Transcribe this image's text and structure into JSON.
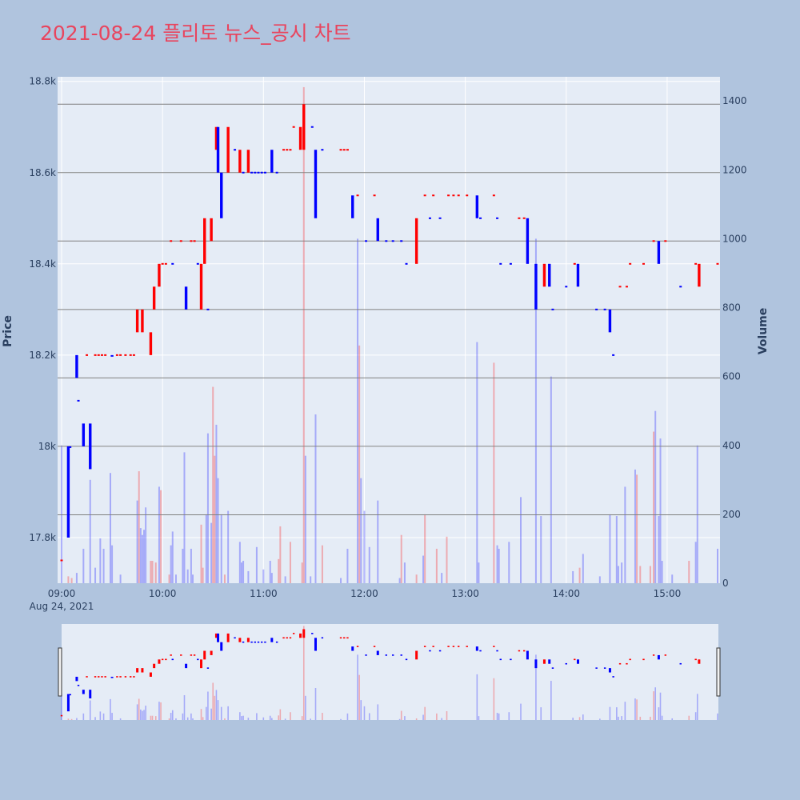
{
  "title": "2021-08-24 플리토 뉴스_공시 차트",
  "colors": {
    "background": "#b0c4de",
    "plot_bg": "#e5ecf6",
    "up": "#ff0000",
    "down": "#0000ff",
    "title": "#e8455e",
    "text": "#2a3f5f",
    "hline": "#808080"
  },
  "chart_data": {
    "type": "candlestick",
    "title": "2021-08-24 플리토 뉴스_공시 차트",
    "date_label": "Aug 24, 2021",
    "y_label": "Price",
    "y2_label": "Volume",
    "x_ticks": [
      "09:00",
      "10:00",
      "11:00",
      "12:00",
      "13:00",
      "14:00",
      "15:00"
    ],
    "y_ticks": [
      {
        "v": 17800,
        "label": "17.8k"
      },
      {
        "v": 18000,
        "label": "18k"
      },
      {
        "v": 18200,
        "label": "18.2k"
      },
      {
        "v": 18400,
        "label": "18.4k"
      },
      {
        "v": 18600,
        "label": "18.6k"
      },
      {
        "v": 18800,
        "label": "18.8k"
      }
    ],
    "y2_ticks": [
      0,
      200,
      400,
      600,
      800,
      1000,
      1200,
      1400
    ],
    "x_range": [
      "09:00",
      "15:30"
    ],
    "y_range": [
      17700,
      18810
    ],
    "y2_range": [
      0,
      1470
    ],
    "horizontal_lines": [
      17850,
      18000,
      18150,
      18300,
      18450,
      18600,
      18750
    ],
    "rangeslider": true,
    "candles": [
      {
        "t": "09:04",
        "o": 18000,
        "c": 17800
      },
      {
        "t": "09:05",
        "o": 18000,
        "c": 18000
      },
      {
        "t": "09:09",
        "o": 18200,
        "c": 18150
      },
      {
        "t": "09:13",
        "o": 18050,
        "c": 18000
      },
      {
        "t": "09:17",
        "o": 18050,
        "c": 17950
      },
      {
        "t": "09:30",
        "o": 18200,
        "c": 18200
      },
      {
        "t": "09:45",
        "o": 18250,
        "c": 18300
      },
      {
        "t": "09:48",
        "o": 18250,
        "c": 18300
      },
      {
        "t": "09:53",
        "o": 18200,
        "c": 18250
      },
      {
        "t": "09:55",
        "o": 18300,
        "c": 18350
      },
      {
        "t": "09:58",
        "o": 18350,
        "c": 18400
      },
      {
        "t": "10:14",
        "o": 18350,
        "c": 18300
      },
      {
        "t": "10:23",
        "o": 18300,
        "c": 18400
      },
      {
        "t": "10:25",
        "o": 18400,
        "c": 18500
      },
      {
        "t": "10:29",
        "o": 18450,
        "c": 18500
      },
      {
        "t": "10:32",
        "o": 18650,
        "c": 18700
      },
      {
        "t": "10:33",
        "o": 18700,
        "c": 18600
      },
      {
        "t": "10:35",
        "o": 18600,
        "c": 18500
      },
      {
        "t": "10:39",
        "o": 18600,
        "c": 18700
      },
      {
        "t": "10:46",
        "o": 18600,
        "c": 18650
      },
      {
        "t": "10:51",
        "o": 18600,
        "c": 18650
      },
      {
        "t": "11:05",
        "o": 18650,
        "c": 18600
      },
      {
        "t": "11:22",
        "o": 18650,
        "c": 18700
      },
      {
        "t": "11:24",
        "o": 18650,
        "c": 18750
      },
      {
        "t": "11:31",
        "o": 18650,
        "c": 18500
      },
      {
        "t": "11:53",
        "o": 18550,
        "c": 18500
      },
      {
        "t": "12:08",
        "o": 18500,
        "c": 18450
      },
      {
        "t": "12:31",
        "o": 18400,
        "c": 18500
      },
      {
        "t": "13:07",
        "o": 18550,
        "c": 18500
      },
      {
        "t": "13:37",
        "o": 18500,
        "c": 18400
      },
      {
        "t": "13:42",
        "o": 18400,
        "c": 18300
      },
      {
        "t": "13:47",
        "o": 18350,
        "c": 18400
      },
      {
        "t": "13:50",
        "o": 18400,
        "c": 18350
      },
      {
        "t": "14:07",
        "o": 18400,
        "c": 18350
      },
      {
        "t": "14:26",
        "o": 18300,
        "c": 18250
      },
      {
        "t": "14:55",
        "o": 18450,
        "c": 18400
      },
      {
        "t": "15:19",
        "o": 18350,
        "c": 18400
      }
    ],
    "flat_trades": [
      {
        "t": "09:00",
        "p": 17750,
        "d": "up"
      },
      {
        "t": "09:10",
        "p": 18100,
        "d": "down"
      },
      {
        "t": "09:15",
        "p": 18200,
        "d": "up"
      },
      {
        "t": "09:20",
        "p": 18200,
        "d": "up"
      },
      {
        "t": "09:22",
        "p": 18200,
        "d": "up"
      },
      {
        "t": "09:24",
        "p": 18200,
        "d": "up"
      },
      {
        "t": "09:26",
        "p": 18200,
        "d": "up"
      },
      {
        "t": "09:33",
        "p": 18200,
        "d": "up"
      },
      {
        "t": "09:35",
        "p": 18200,
        "d": "up"
      },
      {
        "t": "09:38",
        "p": 18200,
        "d": "up"
      },
      {
        "t": "09:41",
        "p": 18200,
        "d": "up"
      },
      {
        "t": "09:43",
        "p": 18200,
        "d": "up"
      },
      {
        "t": "10:00",
        "p": 18400,
        "d": "up"
      },
      {
        "t": "10:02",
        "p": 18400,
        "d": "up"
      },
      {
        "t": "10:05",
        "p": 18450,
        "d": "up"
      },
      {
        "t": "10:06",
        "p": 18400,
        "d": "down"
      },
      {
        "t": "10:11",
        "p": 18450,
        "d": "up"
      },
      {
        "t": "10:17",
        "p": 18450,
        "d": "up"
      },
      {
        "t": "10:19",
        "p": 18450,
        "d": "up"
      },
      {
        "t": "10:21",
        "p": 18400,
        "d": "down"
      },
      {
        "t": "10:27",
        "p": 18300,
        "d": "down"
      },
      {
        "t": "10:43",
        "p": 18650,
        "d": "down"
      },
      {
        "t": "10:48",
        "p": 18600,
        "d": "down"
      },
      {
        "t": "10:53",
        "p": 18600,
        "d": "down"
      },
      {
        "t": "10:55",
        "p": 18600,
        "d": "down"
      },
      {
        "t": "10:57",
        "p": 18600,
        "d": "down"
      },
      {
        "t": "10:59",
        "p": 18600,
        "d": "down"
      },
      {
        "t": "11:01",
        "p": 18600,
        "d": "down"
      },
      {
        "t": "11:08",
        "p": 18600,
        "d": "down"
      },
      {
        "t": "11:12",
        "p": 18650,
        "d": "up"
      },
      {
        "t": "11:14",
        "p": 18650,
        "d": "up"
      },
      {
        "t": "11:16",
        "p": 18650,
        "d": "up"
      },
      {
        "t": "11:18",
        "p": 18700,
        "d": "up"
      },
      {
        "t": "11:29",
        "p": 18700,
        "d": "down"
      },
      {
        "t": "11:35",
        "p": 18650,
        "d": "down"
      },
      {
        "t": "11:46",
        "p": 18650,
        "d": "up"
      },
      {
        "t": "11:48",
        "p": 18650,
        "d": "up"
      },
      {
        "t": "11:50",
        "p": 18650,
        "d": "up"
      },
      {
        "t": "11:56",
        "p": 18550,
        "d": "up"
      },
      {
        "t": "12:01",
        "p": 18450,
        "d": "down"
      },
      {
        "t": "12:06",
        "p": 18550,
        "d": "up"
      },
      {
        "t": "12:13",
        "p": 18450,
        "d": "down"
      },
      {
        "t": "12:17",
        "p": 18450,
        "d": "down"
      },
      {
        "t": "12:22",
        "p": 18450,
        "d": "down"
      },
      {
        "t": "12:25",
        "p": 18400,
        "d": "down"
      },
      {
        "t": "12:36",
        "p": 18550,
        "d": "up"
      },
      {
        "t": "12:39",
        "p": 18500,
        "d": "down"
      },
      {
        "t": "12:41",
        "p": 18550,
        "d": "up"
      },
      {
        "t": "12:45",
        "p": 18500,
        "d": "down"
      },
      {
        "t": "12:50",
        "p": 18550,
        "d": "up"
      },
      {
        "t": "12:53",
        "p": 18550,
        "d": "up"
      },
      {
        "t": "12:56",
        "p": 18550,
        "d": "up"
      },
      {
        "t": "13:01",
        "p": 18550,
        "d": "up"
      },
      {
        "t": "13:09",
        "p": 18500,
        "d": "down"
      },
      {
        "t": "13:17",
        "p": 18550,
        "d": "up"
      },
      {
        "t": "13:19",
        "p": 18500,
        "d": "down"
      },
      {
        "t": "13:21",
        "p": 18400,
        "d": "down"
      },
      {
        "t": "13:27",
        "p": 18400,
        "d": "down"
      },
      {
        "t": "13:32",
        "p": 18500,
        "d": "up"
      },
      {
        "t": "13:35",
        "p": 18500,
        "d": "up"
      },
      {
        "t": "13:52",
        "p": 18300,
        "d": "down"
      },
      {
        "t": "14:00",
        "p": 18350,
        "d": "down"
      },
      {
        "t": "14:05",
        "p": 18400,
        "d": "up"
      },
      {
        "t": "14:18",
        "p": 18300,
        "d": "down"
      },
      {
        "t": "14:23",
        "p": 18300,
        "d": "down"
      },
      {
        "t": "14:28",
        "p": 18200,
        "d": "down"
      },
      {
        "t": "14:32",
        "p": 18350,
        "d": "up"
      },
      {
        "t": "14:36",
        "p": 18350,
        "d": "up"
      },
      {
        "t": "14:38",
        "p": 18400,
        "d": "up"
      },
      {
        "t": "14:46",
        "p": 18400,
        "d": "up"
      },
      {
        "t": "14:52",
        "p": 18450,
        "d": "up"
      },
      {
        "t": "14:59",
        "p": 18450,
        "d": "up"
      },
      {
        "t": "15:08",
        "p": 18350,
        "d": "down"
      },
      {
        "t": "15:17",
        "p": 18400,
        "d": "up"
      },
      {
        "t": "15:30",
        "p": 18400,
        "d": "up"
      }
    ],
    "volume": [
      {
        "t": "09:00",
        "v": 400,
        "d": "down"
      },
      {
        "t": "09:04",
        "v": 20,
        "d": "up"
      },
      {
        "t": "09:06",
        "v": 15,
        "d": "up"
      },
      {
        "t": "09:09",
        "v": 30,
        "d": "down"
      },
      {
        "t": "09:13",
        "v": 100,
        "d": "down"
      },
      {
        "t": "09:17",
        "v": 300,
        "d": "down"
      },
      {
        "t": "09:20",
        "v": 45,
        "d": "down"
      },
      {
        "t": "09:23",
        "v": 130,
        "d": "down"
      },
      {
        "t": "09:25",
        "v": 100,
        "d": "down"
      },
      {
        "t": "09:29",
        "v": 320,
        "d": "down"
      },
      {
        "t": "09:30",
        "v": 110,
        "d": "down"
      },
      {
        "t": "09:35",
        "v": 25,
        "d": "down"
      },
      {
        "t": "09:45",
        "v": 240,
        "d": "down"
      },
      {
        "t": "09:46",
        "v": 325,
        "d": "up"
      },
      {
        "t": "09:47",
        "v": 160,
        "d": "down"
      },
      {
        "t": "09:48",
        "v": 140,
        "d": "down"
      },
      {
        "t": "09:49",
        "v": 155,
        "d": "down"
      },
      {
        "t": "09:50",
        "v": 220,
        "d": "down"
      },
      {
        "t": "09:53",
        "v": 65,
        "d": "up"
      },
      {
        "t": "09:54",
        "v": 65,
        "d": "up"
      },
      {
        "t": "09:56",
        "v": 60,
        "d": "up"
      },
      {
        "t": "09:58",
        "v": 280,
        "d": "down"
      },
      {
        "t": "09:59",
        "v": 270,
        "d": "up"
      },
      {
        "t": "10:04",
        "v": 25,
        "d": "up"
      },
      {
        "t": "10:05",
        "v": 110,
        "d": "down"
      },
      {
        "t": "10:06",
        "v": 150,
        "d": "down"
      },
      {
        "t": "10:08",
        "v": 25,
        "d": "down"
      },
      {
        "t": "10:12",
        "v": 100,
        "d": "down"
      },
      {
        "t": "10:13",
        "v": 380,
        "d": "down"
      },
      {
        "t": "10:15",
        "v": 40,
        "d": "down"
      },
      {
        "t": "10:17",
        "v": 100,
        "d": "down"
      },
      {
        "t": "10:18",
        "v": 25,
        "d": "down"
      },
      {
        "t": "10:23",
        "v": 170,
        "d": "up"
      },
      {
        "t": "10:24",
        "v": 45,
        "d": "up"
      },
      {
        "t": "10:26",
        "v": 200,
        "d": "down"
      },
      {
        "t": "10:27",
        "v": 435,
        "d": "down"
      },
      {
        "t": "10:29",
        "v": 175,
        "d": "down"
      },
      {
        "t": "10:30",
        "v": 570,
        "d": "up"
      },
      {
        "t": "10:31",
        "v": 370,
        "d": "up"
      },
      {
        "t": "10:32",
        "v": 460,
        "d": "down"
      },
      {
        "t": "10:33",
        "v": 305,
        "d": "down"
      },
      {
        "t": "10:35",
        "v": 200,
        "d": "down"
      },
      {
        "t": "10:37",
        "v": 25,
        "d": "up"
      },
      {
        "t": "10:39",
        "v": 210,
        "d": "down"
      },
      {
        "t": "10:46",
        "v": 120,
        "d": "down"
      },
      {
        "t": "10:47",
        "v": 60,
        "d": "down"
      },
      {
        "t": "10:48",
        "v": 65,
        "d": "down"
      },
      {
        "t": "10:51",
        "v": 35,
        "d": "down"
      },
      {
        "t": "10:56",
        "v": 105,
        "d": "down"
      },
      {
        "t": "11:00",
        "v": 40,
        "d": "down"
      },
      {
        "t": "11:04",
        "v": 65,
        "d": "down"
      },
      {
        "t": "11:05",
        "v": 30,
        "d": "down"
      },
      {
        "t": "11:09",
        "v": 70,
        "d": "up"
      },
      {
        "t": "11:10",
        "v": 165,
        "d": "up"
      },
      {
        "t": "11:13",
        "v": 20,
        "d": "down"
      },
      {
        "t": "11:16",
        "v": 120,
        "d": "up"
      },
      {
        "t": "11:23",
        "v": 60,
        "d": "up"
      },
      {
        "t": "11:24",
        "v": 1440,
        "d": "up"
      },
      {
        "t": "11:25",
        "v": 370,
        "d": "down"
      },
      {
        "t": "11:28",
        "v": 20,
        "d": "down"
      },
      {
        "t": "11:31",
        "v": 490,
        "d": "down"
      },
      {
        "t": "11:35",
        "v": 110,
        "d": "up"
      },
      {
        "t": "11:46",
        "v": 15,
        "d": "down"
      },
      {
        "t": "11:50",
        "v": 100,
        "d": "down"
      },
      {
        "t": "11:56",
        "v": 1000,
        "d": "down"
      },
      {
        "t": "11:57",
        "v": 690,
        "d": "up"
      },
      {
        "t": "11:58",
        "v": 305,
        "d": "down"
      },
      {
        "t": "12:00",
        "v": 210,
        "d": "down"
      },
      {
        "t": "12:03",
        "v": 105,
        "d": "down"
      },
      {
        "t": "12:08",
        "v": 240,
        "d": "down"
      },
      {
        "t": "12:21",
        "v": 15,
        "d": "down"
      },
      {
        "t": "12:22",
        "v": 140,
        "d": "up"
      },
      {
        "t": "12:24",
        "v": 60,
        "d": "down"
      },
      {
        "t": "12:31",
        "v": 25,
        "d": "up"
      },
      {
        "t": "12:35",
        "v": 80,
        "d": "down"
      },
      {
        "t": "12:36",
        "v": 200,
        "d": "up"
      },
      {
        "t": "12:43",
        "v": 100,
        "d": "up"
      },
      {
        "t": "12:46",
        "v": 30,
        "d": "down"
      },
      {
        "t": "12:49",
        "v": 135,
        "d": "up"
      },
      {
        "t": "13:07",
        "v": 700,
        "d": "down"
      },
      {
        "t": "13:08",
        "v": 60,
        "d": "down"
      },
      {
        "t": "13:17",
        "v": 640,
        "d": "up"
      },
      {
        "t": "13:19",
        "v": 110,
        "d": "down"
      },
      {
        "t": "13:20",
        "v": 100,
        "d": "down"
      },
      {
        "t": "13:26",
        "v": 120,
        "d": "down"
      },
      {
        "t": "13:33",
        "v": 250,
        "d": "down"
      },
      {
        "t": "13:42",
        "v": 1000,
        "d": "down"
      },
      {
        "t": "13:45",
        "v": 195,
        "d": "down"
      },
      {
        "t": "13:51",
        "v": 600,
        "d": "down"
      },
      {
        "t": "14:04",
        "v": 35,
        "d": "down"
      },
      {
        "t": "14:08",
        "v": 45,
        "d": "up"
      },
      {
        "t": "14:10",
        "v": 85,
        "d": "down"
      },
      {
        "t": "14:20",
        "v": 20,
        "d": "down"
      },
      {
        "t": "14:26",
        "v": 200,
        "d": "down"
      },
      {
        "t": "14:30",
        "v": 195,
        "d": "down"
      },
      {
        "t": "14:31",
        "v": 50,
        "d": "down"
      },
      {
        "t": "14:33",
        "v": 60,
        "d": "down"
      },
      {
        "t": "14:35",
        "v": 280,
        "d": "down"
      },
      {
        "t": "14:41",
        "v": 330,
        "d": "down"
      },
      {
        "t": "14:42",
        "v": 315,
        "d": "up"
      },
      {
        "t": "14:44",
        "v": 50,
        "d": "up"
      },
      {
        "t": "14:50",
        "v": 50,
        "d": "up"
      },
      {
        "t": "14:52",
        "v": 440,
        "d": "up"
      },
      {
        "t": "14:53",
        "v": 500,
        "d": "down"
      },
      {
        "t": "14:55",
        "v": 195,
        "d": "down"
      },
      {
        "t": "14:56",
        "v": 420,
        "d": "down"
      },
      {
        "t": "14:57",
        "v": 65,
        "d": "down"
      },
      {
        "t": "15:03",
        "v": 25,
        "d": "down"
      },
      {
        "t": "15:13",
        "v": 65,
        "d": "up"
      },
      {
        "t": "15:17",
        "v": 120,
        "d": "down"
      },
      {
        "t": "15:18",
        "v": 400,
        "d": "down"
      },
      {
        "t": "15:30",
        "v": 100,
        "d": "down"
      }
    ]
  }
}
